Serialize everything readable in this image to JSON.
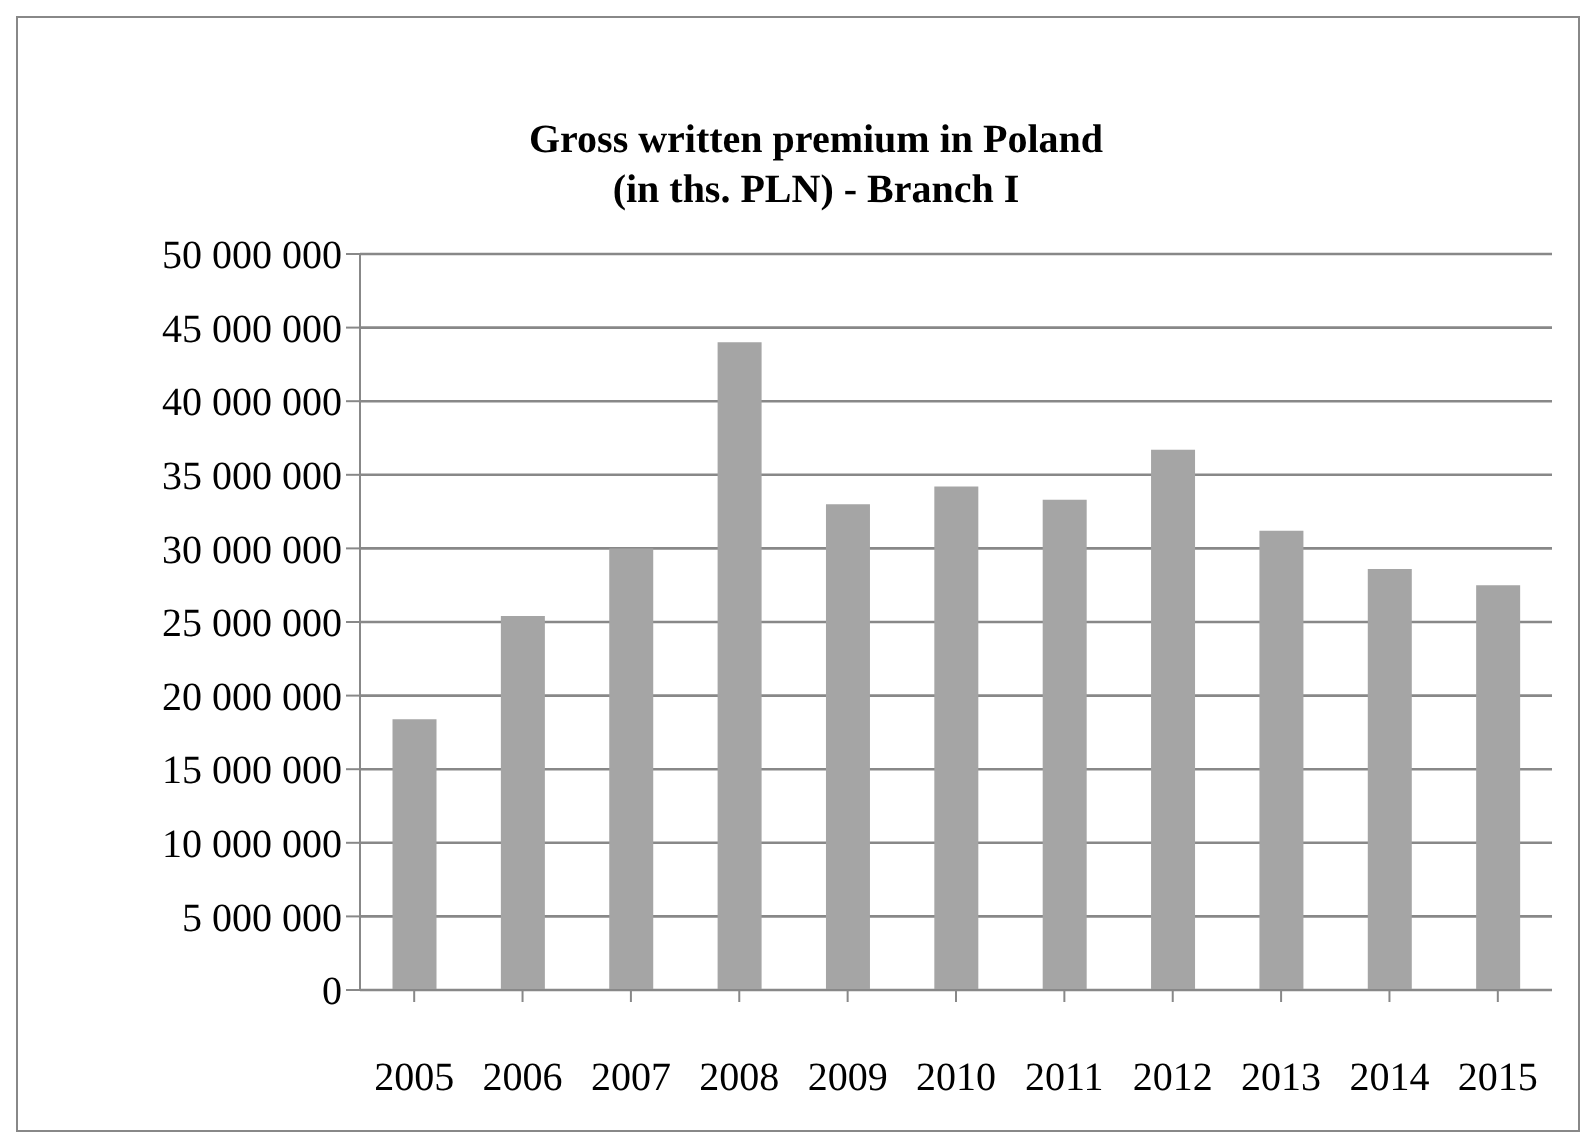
{
  "chart_data": {
    "type": "bar",
    "title": "Gross written premium in Poland\n(in ths. PLN) - Branch I",
    "categories": [
      "2005",
      "2006",
      "2007",
      "2008",
      "2009",
      "2010",
      "2011",
      "2012",
      "2013",
      "2014",
      "2015"
    ],
    "values": [
      18400000,
      25400000,
      30000000,
      44000000,
      33000000,
      34200000,
      33300000,
      36700000,
      31200000,
      28600000,
      27500000
    ],
    "color": "#a5a5a5",
    "ylim": [
      0,
      50000000
    ],
    "yticks": [
      {
        "value": 0,
        "label": "0"
      },
      {
        "value": 5000000,
        "label": "5 000 000"
      },
      {
        "value": 10000000,
        "label": "10 000 000"
      },
      {
        "value": 15000000,
        "label": "15 000 000"
      },
      {
        "value": 20000000,
        "label": "20 000 000"
      },
      {
        "value": 25000000,
        "label": "25 000 000"
      },
      {
        "value": 30000000,
        "label": "30 000 000"
      },
      {
        "value": 35000000,
        "label": "35 000 000"
      },
      {
        "value": 40000000,
        "label": "40 000 000"
      },
      {
        "value": 45000000,
        "label": "45 000 000"
      },
      {
        "value": 50000000,
        "label": "50 000 000"
      }
    ],
    "grid": "y"
  }
}
